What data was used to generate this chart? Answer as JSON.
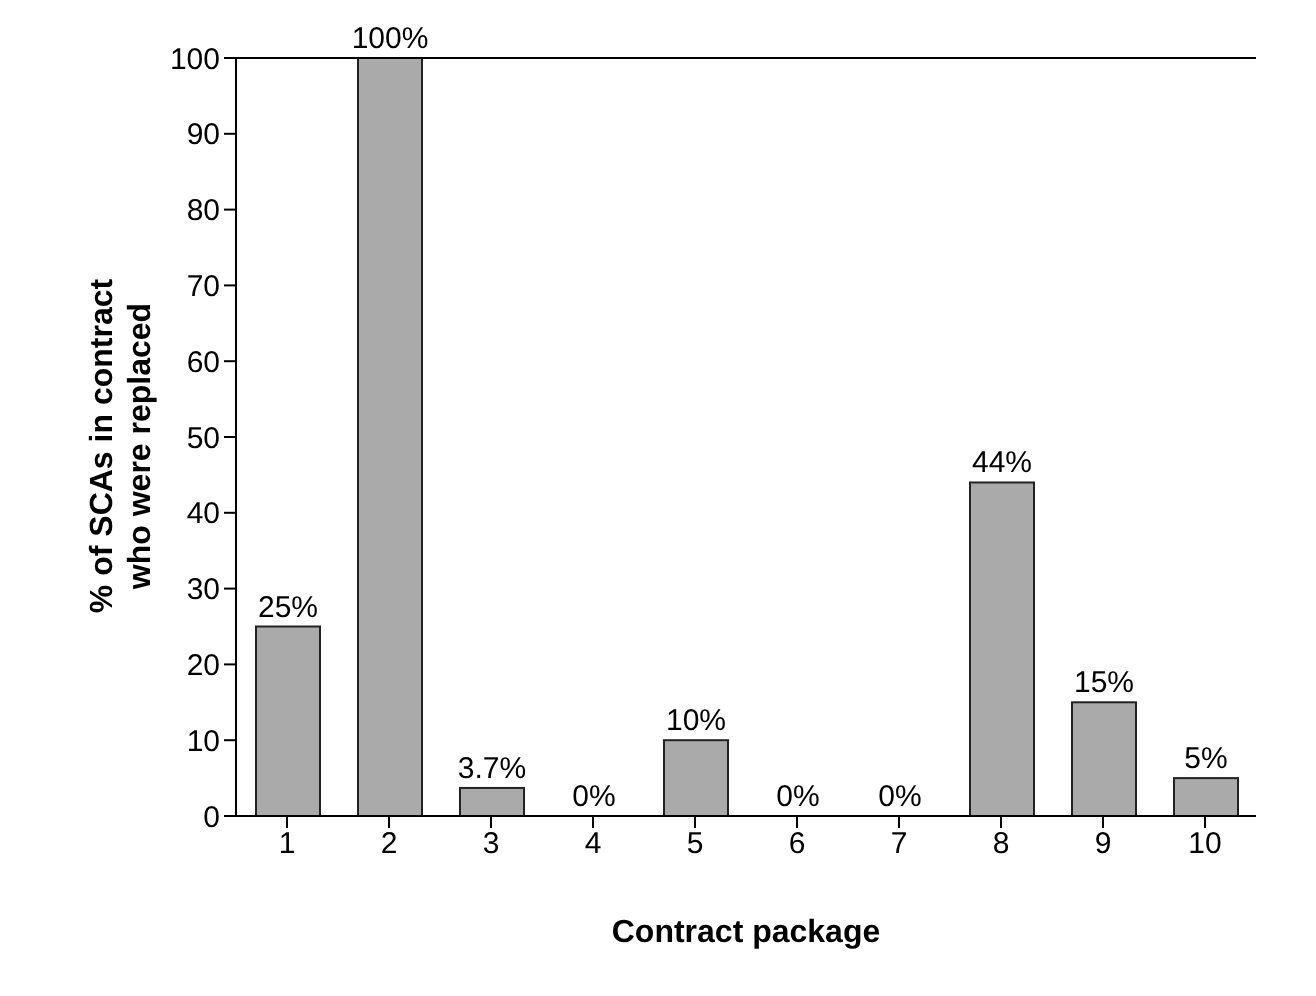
{
  "chart_data": {
    "type": "bar",
    "xlabel": "Contract package",
    "ylabel": "% of SCAs in contract who were replaced",
    "categories": [
      "1",
      "2",
      "3",
      "4",
      "5",
      "6",
      "7",
      "8",
      "9",
      "10"
    ],
    "values": [
      25,
      100,
      3.7,
      0,
      10,
      0,
      0,
      44,
      15,
      5
    ],
    "value_labels": [
      "25%",
      "100%",
      "3.7%",
      "0%",
      "10%",
      "0%",
      "0%",
      "44%",
      "15%",
      "5%"
    ],
    "color": "#aaaaaa",
    "ylim": [
      0,
      100
    ],
    "yticks": [
      0,
      10,
      20,
      30,
      40,
      50,
      60,
      70,
      80,
      90,
      100
    ]
  }
}
